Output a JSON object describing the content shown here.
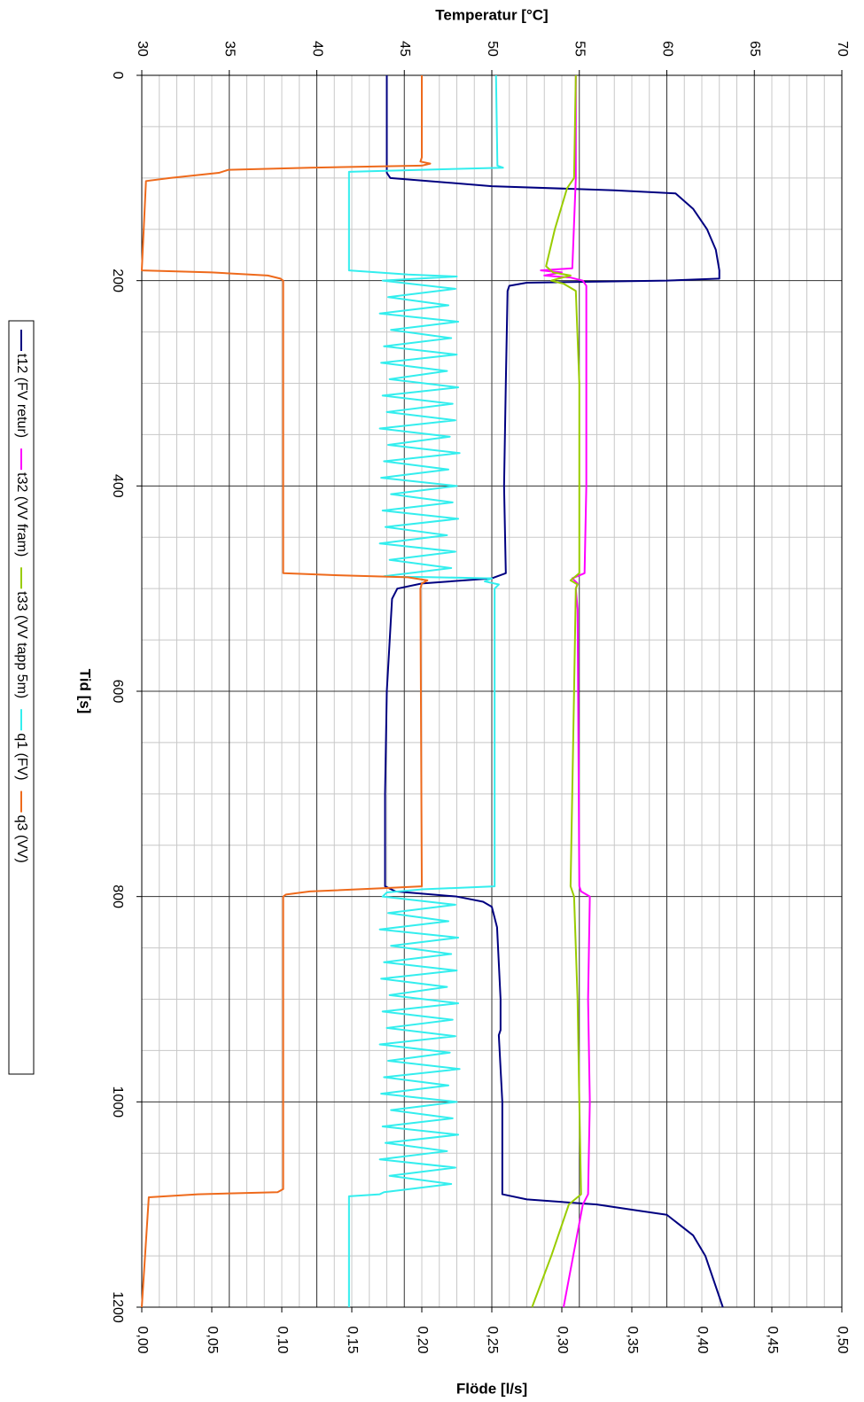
{
  "chart_data": {
    "type": "line",
    "title": "Temperatur [°C]",
    "y_label": "Temperatur [°C]",
    "y2_label": "Flöde [l/s]",
    "x_label": "Tid [s]",
    "xlim": [
      0,
      1200
    ],
    "xticks": [
      0,
      200,
      400,
      600,
      800,
      1000,
      1200
    ],
    "xminorticks": [
      50,
      100,
      150,
      250,
      300,
      350,
      450,
      500,
      550,
      650,
      700,
      750,
      850,
      900,
      950,
      1050,
      1100,
      1150
    ],
    "ylim": [
      30,
      70
    ],
    "yticks": [
      30,
      35,
      40,
      45,
      50,
      55,
      60,
      65,
      70
    ],
    "yminorticks": [
      31,
      32,
      33,
      34,
      36,
      37,
      38,
      39,
      41,
      42,
      43,
      44,
      46,
      47,
      48,
      49,
      51,
      52,
      53,
      54,
      56,
      57,
      58,
      59,
      61,
      62,
      63,
      64,
      66,
      67,
      68,
      69
    ],
    "y2lim": [
      0,
      0.5
    ],
    "y2ticks": [
      {
        "value": 0,
        "label": "0,00"
      },
      {
        "value": 0.05,
        "label": "0,05"
      },
      {
        "value": 0.1,
        "label": "0,10"
      },
      {
        "value": 0.15,
        "label": "0,15"
      },
      {
        "value": 0.2,
        "label": "0,20"
      },
      {
        "value": 0.25,
        "label": "0,25"
      },
      {
        "value": 0.3,
        "label": "0,30"
      },
      {
        "value": 0.35,
        "label": "0,35"
      },
      {
        "value": 0.4,
        "label": "0,40"
      },
      {
        "value": 0.45,
        "label": "0,45"
      },
      {
        "value": 0.5,
        "label": "0,50"
      }
    ],
    "grid": true,
    "legend": "left",
    "series": [
      {
        "name": "t12 (FV retur)",
        "color": "#000080",
        "x": [
          0,
          95,
          100,
          108,
          112,
          115,
          130,
          150,
          170,
          190,
          198,
          200,
          202,
          205,
          210,
          300,
          400,
          485,
          490,
          495,
          500,
          510,
          600,
          700,
          790,
          795,
          800,
          805,
          810,
          830,
          900,
          930,
          935,
          1000,
          1090,
          1095,
          1100,
          1105,
          1110,
          1130,
          1150,
          1200
        ],
        "values": [
          44,
          44,
          44.2,
          50,
          57,
          60.5,
          61.5,
          62.3,
          62.8,
          63,
          63,
          60,
          52,
          51,
          50.9,
          50.8,
          50.7,
          50.8,
          50,
          46,
          44.6,
          44.3,
          44,
          43.9,
          43.9,
          44.5,
          48,
          49.5,
          50,
          50.3,
          50.5,
          50.5,
          50.4,
          50.6,
          50.6,
          52,
          56,
          58,
          60,
          61.5,
          62.2,
          63.2
        ]
      },
      {
        "name": "t32 (VV fram)",
        "color": "#ff00ff",
        "x": [
          0,
          100,
          188,
          190,
          192,
          195,
          197,
          200,
          205,
          300,
          400,
          485,
          490,
          495,
          500,
          520,
          790,
          795,
          800,
          900,
          1000,
          1090,
          1100,
          1200
        ],
        "values": [
          54.8,
          54.8,
          54.6,
          52.8,
          54,
          53,
          54.5,
          55.2,
          55.4,
          55.4,
          55.4,
          55.3,
          54.6,
          54.9,
          54.8,
          54.9,
          55,
          55.1,
          55.6,
          55.5,
          55.6,
          55.5,
          55.2,
          54.1
        ]
      },
      {
        "name": "t33 (VV tapp 5m)",
        "color": "#99cc00",
        "x": [
          0,
          100,
          110,
          150,
          186,
          192,
          195,
          198,
          200,
          203,
          210,
          300,
          400,
          485,
          492,
          496,
          500,
          600,
          790,
          800,
          900,
          1000,
          1090,
          1100,
          1150,
          1200
        ],
        "values": [
          54.8,
          54.7,
          54.3,
          53.6,
          53.1,
          53.5,
          54.5,
          53.8,
          53.4,
          54.1,
          54.8,
          55,
          55,
          55,
          54.5,
          54.9,
          54.8,
          54.7,
          54.5,
          54.7,
          54.9,
          55,
          55.1,
          54.4,
          53.4,
          52.3
        ]
      },
      {
        "name": "q1 (FV)",
        "color": "#33eeee",
        "axis": "y2",
        "x": [
          0,
          88,
          90,
          92,
          94,
          190,
          194,
          196,
          200,
          208,
          216,
          224,
          232,
          240,
          248,
          256,
          264,
          272,
          280,
          288,
          296,
          304,
          312,
          320,
          328,
          336,
          344,
          352,
          360,
          368,
          376,
          384,
          392,
          400,
          408,
          416,
          424,
          432,
          440,
          448,
          456,
          464,
          472,
          480,
          488,
          490,
          493,
          496,
          500,
          790,
          793,
          796,
          800,
          808,
          816,
          824,
          832,
          840,
          848,
          856,
          864,
          872,
          880,
          888,
          896,
          904,
          912,
          920,
          928,
          936,
          944,
          952,
          960,
          968,
          976,
          984,
          992,
          1000,
          1008,
          1016,
          1024,
          1032,
          1040,
          1048,
          1056,
          1064,
          1072,
          1080,
          1088,
          1090,
          1092,
          1200
        ],
        "values": [
          0.253,
          0.254,
          0.258,
          0.2,
          0.148,
          0.148,
          0.19,
          0.225,
          0.172,
          0.224,
          0.176,
          0.219,
          0.17,
          0.226,
          0.178,
          0.221,
          0.173,
          0.225,
          0.171,
          0.218,
          0.177,
          0.226,
          0.172,
          0.222,
          0.175,
          0.224,
          0.17,
          0.22,
          0.176,
          0.227,
          0.173,
          0.219,
          0.171,
          0.225,
          0.178,
          0.222,
          0.172,
          0.226,
          0.174,
          0.218,
          0.17,
          0.224,
          0.177,
          0.221,
          0.173,
          0.25,
          0.245,
          0.255,
          0.252,
          0.252,
          0.2,
          0.175,
          0.172,
          0.224,
          0.176,
          0.219,
          0.17,
          0.226,
          0.178,
          0.221,
          0.173,
          0.225,
          0.171,
          0.218,
          0.177,
          0.226,
          0.172,
          0.222,
          0.175,
          0.224,
          0.17,
          0.22,
          0.176,
          0.227,
          0.173,
          0.219,
          0.171,
          0.225,
          0.178,
          0.222,
          0.172,
          0.226,
          0.174,
          0.218,
          0.17,
          0.224,
          0.177,
          0.221,
          0.173,
          0.17,
          0.148,
          0.148
        ]
      },
      {
        "name": "q3 (VV)",
        "color": "#ee6a1c",
        "axis": "y2",
        "x": [
          0,
          80,
          84,
          86,
          88,
          90,
          92,
          95,
          100,
          103,
          190,
          192,
          195,
          198,
          200,
          485,
          487,
          489,
          492,
          495,
          500,
          790,
          792,
          795,
          798,
          800,
          1085,
          1088,
          1090,
          1093,
          1200
        ],
        "values": [
          0.2,
          0.2,
          0.199,
          0.206,
          0.2,
          0.12,
          0.062,
          0.055,
          0.02,
          0.003,
          0,
          0.05,
          0.09,
          0.099,
          0.101,
          0.101,
          0.14,
          0.19,
          0.204,
          0.2,
          0.199,
          0.2,
          0.17,
          0.12,
          0.103,
          0.101,
          0.101,
          0.097,
          0.04,
          0.005,
          0
        ]
      }
    ]
  }
}
